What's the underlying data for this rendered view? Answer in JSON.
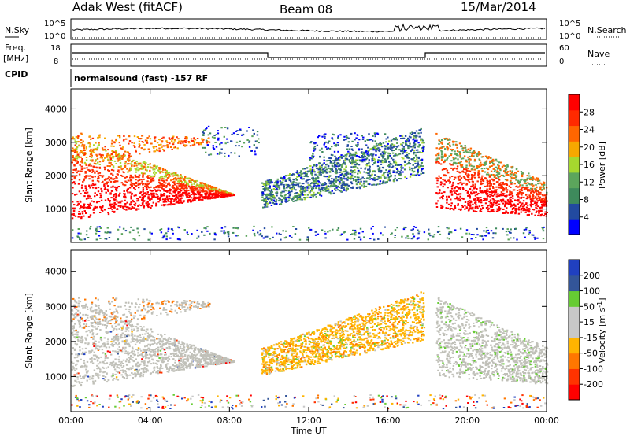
{
  "header": {
    "station": "Adak West (fitACF)",
    "beam": "Beam 08",
    "date": "15/Mar/2014"
  },
  "top_panels": {
    "nsky_label": "N.Sky",
    "nsky_ticks": [
      "10^5",
      "10^0"
    ],
    "nsearch_label": "N.Search",
    "nsearch_ticks": [
      "10^5",
      "10^0"
    ],
    "freq_label": "Freq.",
    "freq_unit": "[MHz]",
    "freq_ticks": [
      "18",
      "8"
    ],
    "nave_label": "Nave",
    "nave_ticks": [
      "60",
      "0"
    ],
    "cpid_label": "CPID",
    "cpid_text": "normalsound (fast) -157 RF"
  },
  "colors": {
    "power": [
      "#0000ff",
      "#224aa0",
      "#3e8a5c",
      "#5ca55c",
      "#a6d82e",
      "#f6a800",
      "#ff6600",
      "#ff2a00",
      "#ff0000"
    ],
    "velocity": [
      "#ff0000",
      "#ff3300",
      "#ff7700",
      "#ffb400",
      "#c8c8c8",
      "#c8c8c8",
      "#66cc33",
      "#335599",
      "#2040c0"
    ],
    "ground_scatter": "#c0c0b8"
  },
  "chart_data": [
    {
      "type": "heatmap",
      "title": "",
      "ylabel": "Slant Range [km]",
      "ylim": [
        0,
        4600
      ],
      "yticks": [
        "4000",
        "3000",
        "2000",
        "1000"
      ],
      "xlim": [
        0,
        24
      ],
      "colorbar_label": "Power [dB]",
      "colorbar_ticks": [
        "28",
        "24",
        "20",
        "16",
        "12",
        "8",
        "4"
      ],
      "colorbar_range": [
        0,
        32
      ]
    },
    {
      "type": "heatmap",
      "title": "",
      "ylabel": "Slant Range [km]",
      "ylim": [
        0,
        4600
      ],
      "yticks": [
        "4000",
        "3000",
        "2000",
        "1000"
      ],
      "xlim": [
        0,
        24
      ],
      "xlabel": "Time UT",
      "xticks": [
        "00:00",
        "04:00",
        "08:00",
        "12:00",
        "16:00",
        "20:00",
        "00:00"
      ],
      "colorbar_label": "Velocity [m s",
      "colorbar_label_exp": "-1",
      "colorbar_label_end": "]",
      "colorbar_ticks": [
        "200",
        "100",
        "50",
        "15",
        "-15",
        "-50",
        "-100",
        "-200"
      ]
    }
  ]
}
